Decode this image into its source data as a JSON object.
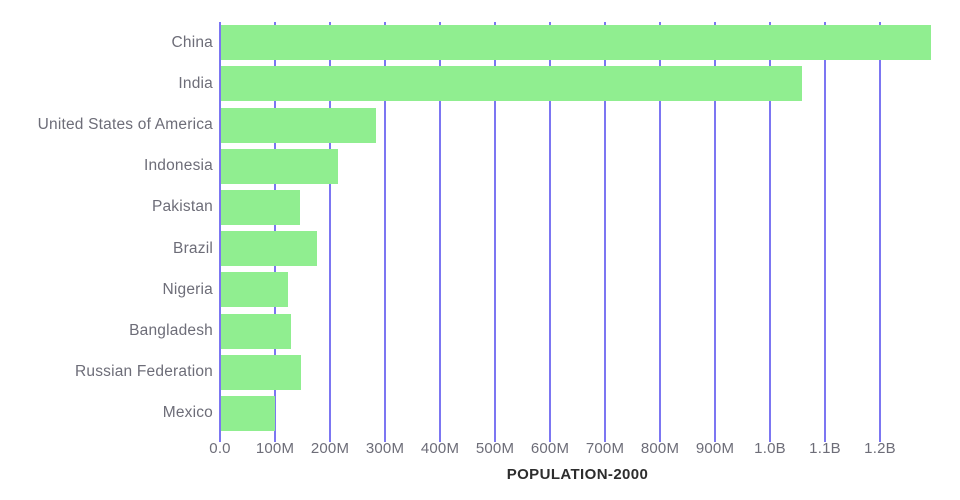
{
  "chart_data": {
    "type": "bar",
    "orientation": "horizontal",
    "title": "POPULATION-2000",
    "xlabel": "POPULATION-2000",
    "ylabel": "",
    "grid": true,
    "legend": false,
    "categories": [
      "China",
      "India",
      "United States of America",
      "Indonesia",
      "Pakistan",
      "Brazil",
      "Nigeria",
      "Bangladesh",
      "Russian Federation",
      "Mexico"
    ],
    "values_millions": [
      1290,
      1056,
      282,
      212,
      143,
      175,
      122,
      128,
      146,
      99
    ],
    "xlim_millions": [
      0,
      1300
    ],
    "tick_values_millions": [
      0,
      100,
      200,
      300,
      400,
      500,
      600,
      700,
      800,
      900,
      1000,
      1100,
      1200
    ],
    "tick_labels": [
      "0.0",
      "100M",
      "200M",
      "300M",
      "400M",
      "500M",
      "600M",
      "700M",
      "800M",
      "900M",
      "1.0B",
      "1.1B",
      "1.2B"
    ],
    "colors": {
      "bar": "#90ee90",
      "gridline": "#7c76f2",
      "axis_text": "#6d6d78",
      "title_text": "#2d2d2d",
      "background": "#ffffff"
    }
  }
}
